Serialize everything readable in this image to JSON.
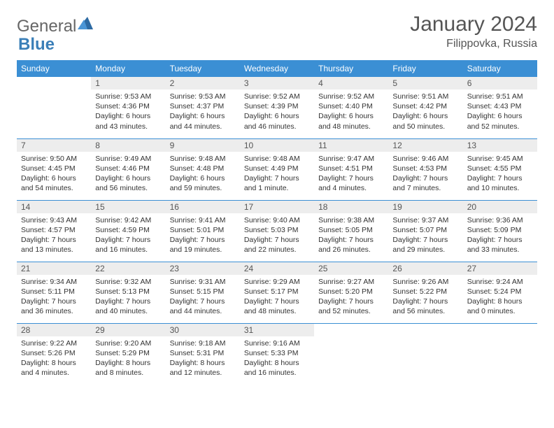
{
  "logo": {
    "part1": "General",
    "part2": "Blue"
  },
  "title": "January 2024",
  "location": "Filippovka, Russia",
  "colors": {
    "header_bg": "#3b8fd4",
    "header_text": "#ffffff",
    "daynum_bg": "#ededed",
    "border": "#3b8fd4",
    "logo_accent": "#3b7fb8"
  },
  "weekdays": [
    "Sunday",
    "Monday",
    "Tuesday",
    "Wednesday",
    "Thursday",
    "Friday",
    "Saturday"
  ],
  "weeks": [
    [
      {
        "n": "",
        "sunrise": "",
        "sunset": "",
        "daylight1": "",
        "daylight2": ""
      },
      {
        "n": "1",
        "sunrise": "Sunrise: 9:53 AM",
        "sunset": "Sunset: 4:36 PM",
        "daylight1": "Daylight: 6 hours",
        "daylight2": "and 43 minutes."
      },
      {
        "n": "2",
        "sunrise": "Sunrise: 9:53 AM",
        "sunset": "Sunset: 4:37 PM",
        "daylight1": "Daylight: 6 hours",
        "daylight2": "and 44 minutes."
      },
      {
        "n": "3",
        "sunrise": "Sunrise: 9:52 AM",
        "sunset": "Sunset: 4:39 PM",
        "daylight1": "Daylight: 6 hours",
        "daylight2": "and 46 minutes."
      },
      {
        "n": "4",
        "sunrise": "Sunrise: 9:52 AM",
        "sunset": "Sunset: 4:40 PM",
        "daylight1": "Daylight: 6 hours",
        "daylight2": "and 48 minutes."
      },
      {
        "n": "5",
        "sunrise": "Sunrise: 9:51 AM",
        "sunset": "Sunset: 4:42 PM",
        "daylight1": "Daylight: 6 hours",
        "daylight2": "and 50 minutes."
      },
      {
        "n": "6",
        "sunrise": "Sunrise: 9:51 AM",
        "sunset": "Sunset: 4:43 PM",
        "daylight1": "Daylight: 6 hours",
        "daylight2": "and 52 minutes."
      }
    ],
    [
      {
        "n": "7",
        "sunrise": "Sunrise: 9:50 AM",
        "sunset": "Sunset: 4:45 PM",
        "daylight1": "Daylight: 6 hours",
        "daylight2": "and 54 minutes."
      },
      {
        "n": "8",
        "sunrise": "Sunrise: 9:49 AM",
        "sunset": "Sunset: 4:46 PM",
        "daylight1": "Daylight: 6 hours",
        "daylight2": "and 56 minutes."
      },
      {
        "n": "9",
        "sunrise": "Sunrise: 9:48 AM",
        "sunset": "Sunset: 4:48 PM",
        "daylight1": "Daylight: 6 hours",
        "daylight2": "and 59 minutes."
      },
      {
        "n": "10",
        "sunrise": "Sunrise: 9:48 AM",
        "sunset": "Sunset: 4:49 PM",
        "daylight1": "Daylight: 7 hours",
        "daylight2": "and 1 minute."
      },
      {
        "n": "11",
        "sunrise": "Sunrise: 9:47 AM",
        "sunset": "Sunset: 4:51 PM",
        "daylight1": "Daylight: 7 hours",
        "daylight2": "and 4 minutes."
      },
      {
        "n": "12",
        "sunrise": "Sunrise: 9:46 AM",
        "sunset": "Sunset: 4:53 PM",
        "daylight1": "Daylight: 7 hours",
        "daylight2": "and 7 minutes."
      },
      {
        "n": "13",
        "sunrise": "Sunrise: 9:45 AM",
        "sunset": "Sunset: 4:55 PM",
        "daylight1": "Daylight: 7 hours",
        "daylight2": "and 10 minutes."
      }
    ],
    [
      {
        "n": "14",
        "sunrise": "Sunrise: 9:43 AM",
        "sunset": "Sunset: 4:57 PM",
        "daylight1": "Daylight: 7 hours",
        "daylight2": "and 13 minutes."
      },
      {
        "n": "15",
        "sunrise": "Sunrise: 9:42 AM",
        "sunset": "Sunset: 4:59 PM",
        "daylight1": "Daylight: 7 hours",
        "daylight2": "and 16 minutes."
      },
      {
        "n": "16",
        "sunrise": "Sunrise: 9:41 AM",
        "sunset": "Sunset: 5:01 PM",
        "daylight1": "Daylight: 7 hours",
        "daylight2": "and 19 minutes."
      },
      {
        "n": "17",
        "sunrise": "Sunrise: 9:40 AM",
        "sunset": "Sunset: 5:03 PM",
        "daylight1": "Daylight: 7 hours",
        "daylight2": "and 22 minutes."
      },
      {
        "n": "18",
        "sunrise": "Sunrise: 9:38 AM",
        "sunset": "Sunset: 5:05 PM",
        "daylight1": "Daylight: 7 hours",
        "daylight2": "and 26 minutes."
      },
      {
        "n": "19",
        "sunrise": "Sunrise: 9:37 AM",
        "sunset": "Sunset: 5:07 PM",
        "daylight1": "Daylight: 7 hours",
        "daylight2": "and 29 minutes."
      },
      {
        "n": "20",
        "sunrise": "Sunrise: 9:36 AM",
        "sunset": "Sunset: 5:09 PM",
        "daylight1": "Daylight: 7 hours",
        "daylight2": "and 33 minutes."
      }
    ],
    [
      {
        "n": "21",
        "sunrise": "Sunrise: 9:34 AM",
        "sunset": "Sunset: 5:11 PM",
        "daylight1": "Daylight: 7 hours",
        "daylight2": "and 36 minutes."
      },
      {
        "n": "22",
        "sunrise": "Sunrise: 9:32 AM",
        "sunset": "Sunset: 5:13 PM",
        "daylight1": "Daylight: 7 hours",
        "daylight2": "and 40 minutes."
      },
      {
        "n": "23",
        "sunrise": "Sunrise: 9:31 AM",
        "sunset": "Sunset: 5:15 PM",
        "daylight1": "Daylight: 7 hours",
        "daylight2": "and 44 minutes."
      },
      {
        "n": "24",
        "sunrise": "Sunrise: 9:29 AM",
        "sunset": "Sunset: 5:17 PM",
        "daylight1": "Daylight: 7 hours",
        "daylight2": "and 48 minutes."
      },
      {
        "n": "25",
        "sunrise": "Sunrise: 9:27 AM",
        "sunset": "Sunset: 5:20 PM",
        "daylight1": "Daylight: 7 hours",
        "daylight2": "and 52 minutes."
      },
      {
        "n": "26",
        "sunrise": "Sunrise: 9:26 AM",
        "sunset": "Sunset: 5:22 PM",
        "daylight1": "Daylight: 7 hours",
        "daylight2": "and 56 minutes."
      },
      {
        "n": "27",
        "sunrise": "Sunrise: 9:24 AM",
        "sunset": "Sunset: 5:24 PM",
        "daylight1": "Daylight: 8 hours",
        "daylight2": "and 0 minutes."
      }
    ],
    [
      {
        "n": "28",
        "sunrise": "Sunrise: 9:22 AM",
        "sunset": "Sunset: 5:26 PM",
        "daylight1": "Daylight: 8 hours",
        "daylight2": "and 4 minutes."
      },
      {
        "n": "29",
        "sunrise": "Sunrise: 9:20 AM",
        "sunset": "Sunset: 5:29 PM",
        "daylight1": "Daylight: 8 hours",
        "daylight2": "and 8 minutes."
      },
      {
        "n": "30",
        "sunrise": "Sunrise: 9:18 AM",
        "sunset": "Sunset: 5:31 PM",
        "daylight1": "Daylight: 8 hours",
        "daylight2": "and 12 minutes."
      },
      {
        "n": "31",
        "sunrise": "Sunrise: 9:16 AM",
        "sunset": "Sunset: 5:33 PM",
        "daylight1": "Daylight: 8 hours",
        "daylight2": "and 16 minutes."
      },
      {
        "n": "",
        "sunrise": "",
        "sunset": "",
        "daylight1": "",
        "daylight2": ""
      },
      {
        "n": "",
        "sunrise": "",
        "sunset": "",
        "daylight1": "",
        "daylight2": ""
      },
      {
        "n": "",
        "sunrise": "",
        "sunset": "",
        "daylight1": "",
        "daylight2": ""
      }
    ]
  ]
}
